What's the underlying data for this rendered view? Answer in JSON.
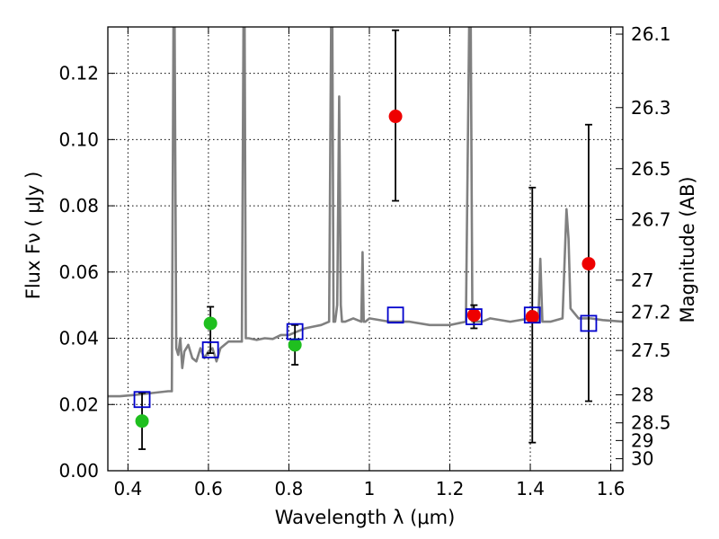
{
  "chart_data": {
    "type": "scatter",
    "xlabel": "Wavelength  λ (μm)",
    "ylabel": "Flux  Fν  ( μJy )",
    "ylabel_right": "Magnitude (AB)",
    "xlim": [
      0.35,
      1.63
    ],
    "ylim": [
      0.0,
      0.134
    ],
    "grid": true,
    "x_ticks": [
      0.4,
      0.6,
      0.8,
      1.0,
      1.2,
      1.4,
      1.6
    ],
    "x_tick_labels": [
      "0.4",
      "0.6",
      "0.8",
      "1",
      "1.2",
      "1.4",
      "1.6"
    ],
    "y_ticks": [
      0.0,
      0.02,
      0.04,
      0.06,
      0.08,
      0.1,
      0.12
    ],
    "y_tick_labels": [
      "0.00",
      "0.02",
      "0.04",
      "0.06",
      "0.08",
      "0.10",
      "0.12"
    ],
    "mag_ticks": [
      "26.1",
      "26.3",
      "26.5",
      "26.7",
      "27",
      "27.2",
      "27.5",
      "28",
      "28.5",
      "29",
      "30"
    ],
    "colors": {
      "spectrum": "#808080",
      "model": "#0000cc",
      "green": "#1fbf1f",
      "red": "#ee0000",
      "errorbar": "#000000"
    },
    "series": [
      {
        "kind": "model_spectrum",
        "x": [
          0.35,
          0.38,
          0.41,
          0.44,
          0.47,
          0.5,
          0.509,
          0.513,
          0.516,
          0.52,
          0.525,
          0.53,
          0.535,
          0.54,
          0.55,
          0.56,
          0.57,
          0.58,
          0.59,
          0.6,
          0.61,
          0.62,
          0.63,
          0.64,
          0.65,
          0.66,
          0.67,
          0.683,
          0.687,
          0.69,
          0.693,
          0.7,
          0.72,
          0.74,
          0.76,
          0.78,
          0.8,
          0.82,
          0.84,
          0.86,
          0.88,
          0.9,
          0.905,
          0.908,
          0.911,
          0.915,
          0.92,
          0.925,
          0.929,
          0.932,
          0.936,
          0.94,
          0.96,
          0.98,
          0.983,
          0.986,
          0.99,
          1.0,
          1.05,
          1.1,
          1.15,
          1.2,
          1.24,
          1.248,
          1.252,
          1.256,
          1.262,
          1.28,
          1.3,
          1.35,
          1.4,
          1.42,
          1.425,
          1.43,
          1.45,
          1.48,
          1.49,
          1.495,
          1.5,
          1.52,
          1.55,
          1.58,
          1.63
        ],
        "values": [
          0.0225,
          0.0225,
          0.0228,
          0.0232,
          0.0236,
          0.024,
          0.024,
          0.134,
          0.134,
          0.037,
          0.035,
          0.04,
          0.031,
          0.036,
          0.038,
          0.034,
          0.033,
          0.037,
          0.034,
          0.036,
          0.037,
          0.033,
          0.037,
          0.038,
          0.039,
          0.039,
          0.039,
          0.039,
          0.134,
          0.134,
          0.04,
          0.04,
          0.0395,
          0.04,
          0.0398,
          0.041,
          0.041,
          0.042,
          0.043,
          0.0435,
          0.044,
          0.045,
          0.134,
          0.134,
          0.045,
          0.045,
          0.05,
          0.113,
          0.05,
          0.045,
          0.045,
          0.045,
          0.046,
          0.045,
          0.066,
          0.045,
          0.045,
          0.046,
          0.045,
          0.045,
          0.044,
          0.044,
          0.045,
          0.134,
          0.134,
          0.045,
          0.045,
          0.045,
          0.046,
          0.045,
          0.046,
          0.045,
          0.064,
          0.045,
          0.045,
          0.046,
          0.079,
          0.07,
          0.049,
          0.046,
          0.046,
          0.0455,
          0.045
        ]
      },
      {
        "kind": "model_photometry",
        "marker": "open-square",
        "x": [
          0.435,
          0.605,
          0.815,
          1.065,
          1.26,
          1.405,
          1.545
        ],
        "values": [
          0.0215,
          0.0365,
          0.042,
          0.047,
          0.0465,
          0.047,
          0.0445
        ]
      },
      {
        "kind": "observed_optical",
        "marker": "filled-circle",
        "x": [
          0.435,
          0.605,
          0.815
        ],
        "values": [
          0.015,
          0.0445,
          0.038
        ],
        "err_low": [
          0.0065,
          0.0355,
          0.032
        ],
        "err_high": [
          0.0235,
          0.0495,
          0.044
        ]
      },
      {
        "kind": "observed_nir",
        "marker": "filled-circle",
        "x": [
          1.065,
          1.26,
          1.405,
          1.545
        ],
        "values": [
          0.107,
          0.047,
          0.0465,
          0.0625
        ],
        "err_low": [
          0.0815,
          0.043,
          0.0085,
          0.021
        ],
        "err_high": [
          0.133,
          0.05,
          0.0855,
          0.1045
        ]
      }
    ]
  }
}
